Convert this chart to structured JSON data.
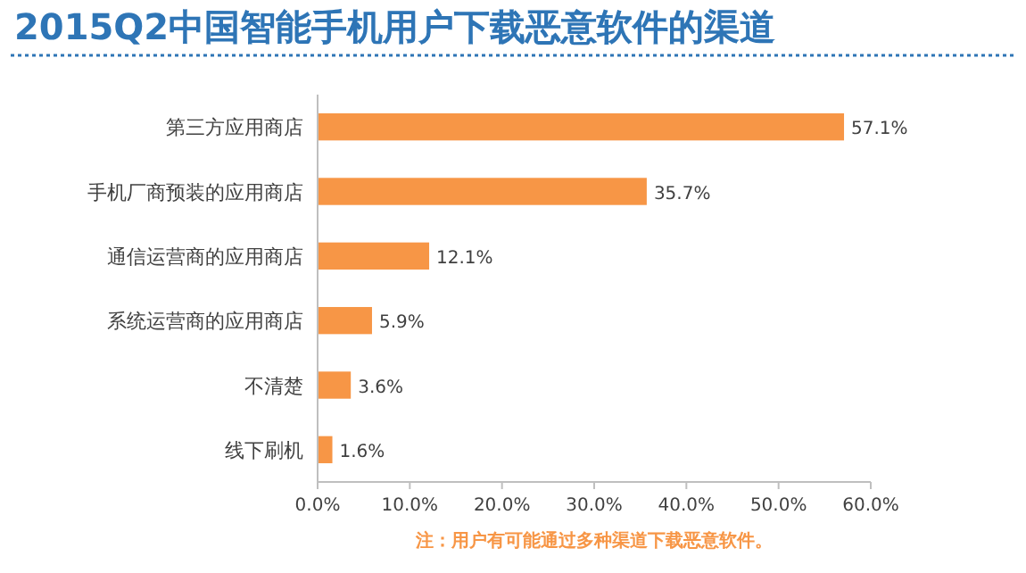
{
  "chart_data": {
    "type": "bar",
    "orientation": "horizontal",
    "title": "2015Q2中国智能手机用户下载恶意软件的渠道",
    "categories": [
      "第三方应用商店",
      "手机厂商预装的应用商店",
      "通信运营商的应用商店",
      "系统运营商的应用商店",
      "不清楚",
      "线下刷机"
    ],
    "values": [
      57.1,
      35.7,
      12.1,
      5.9,
      3.6,
      1.6
    ],
    "value_labels": [
      "57.1%",
      "35.7%",
      "12.1%",
      "5.9%",
      "3.6%",
      "1.6%"
    ],
    "color": "#f79646",
    "xlim": [
      0,
      60
    ],
    "xticks": [
      {
        "value": 0,
        "label": "0.0%"
      },
      {
        "value": 10,
        "label": "10.0%"
      },
      {
        "value": 20,
        "label": "20.0%"
      },
      {
        "value": 30,
        "label": "30.0%"
      },
      {
        "value": 40,
        "label": "40.0%"
      },
      {
        "value": 50,
        "label": "50.0%"
      },
      {
        "value": 60,
        "label": "60.0%"
      }
    ],
    "annotations": [
      "注：用户有可能通过多种渠道下载恶意软件。"
    ]
  }
}
